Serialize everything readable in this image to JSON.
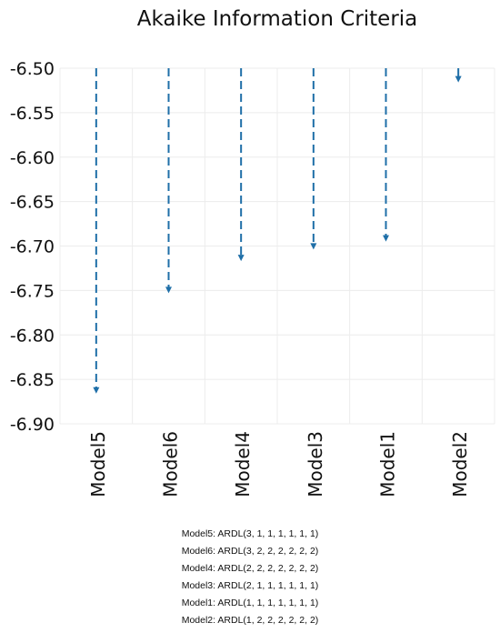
{
  "chart_data": {
    "type": "line",
    "title": "Akaike Information Criteria",
    "xlabel": "",
    "ylabel": "",
    "categories": [
      "Model5",
      "Model6",
      "Model4",
      "Model3",
      "Model1",
      "Model2"
    ],
    "start_value": -6.5,
    "values": [
      -6.865,
      -6.752,
      -6.716,
      -6.703,
      -6.694,
      -6.515
    ],
    "ylim": [
      -6.9,
      -6.5
    ],
    "yticks": [
      "-6.50",
      "-6.55",
      "-6.60",
      "-6.65",
      "-6.70",
      "-6.75",
      "-6.80",
      "-6.85",
      "-6.90"
    ],
    "grid": true,
    "series_color": "#1f6fa8"
  },
  "notes": [
    "Model5: ARDL(3, 1, 1, 1, 1, 1, 1)",
    "Model6: ARDL(3, 2, 2, 2, 2, 2, 2)",
    "Model4: ARDL(2, 2, 2, 2, 2, 2, 2)",
    "Model3: ARDL(2, 1, 1, 1, 1, 1, 1)",
    "Model1: ARDL(1, 1, 1, 1, 1, 1, 1)",
    "Model2: ARDL(1, 2, 2, 2, 2, 2, 2)"
  ]
}
